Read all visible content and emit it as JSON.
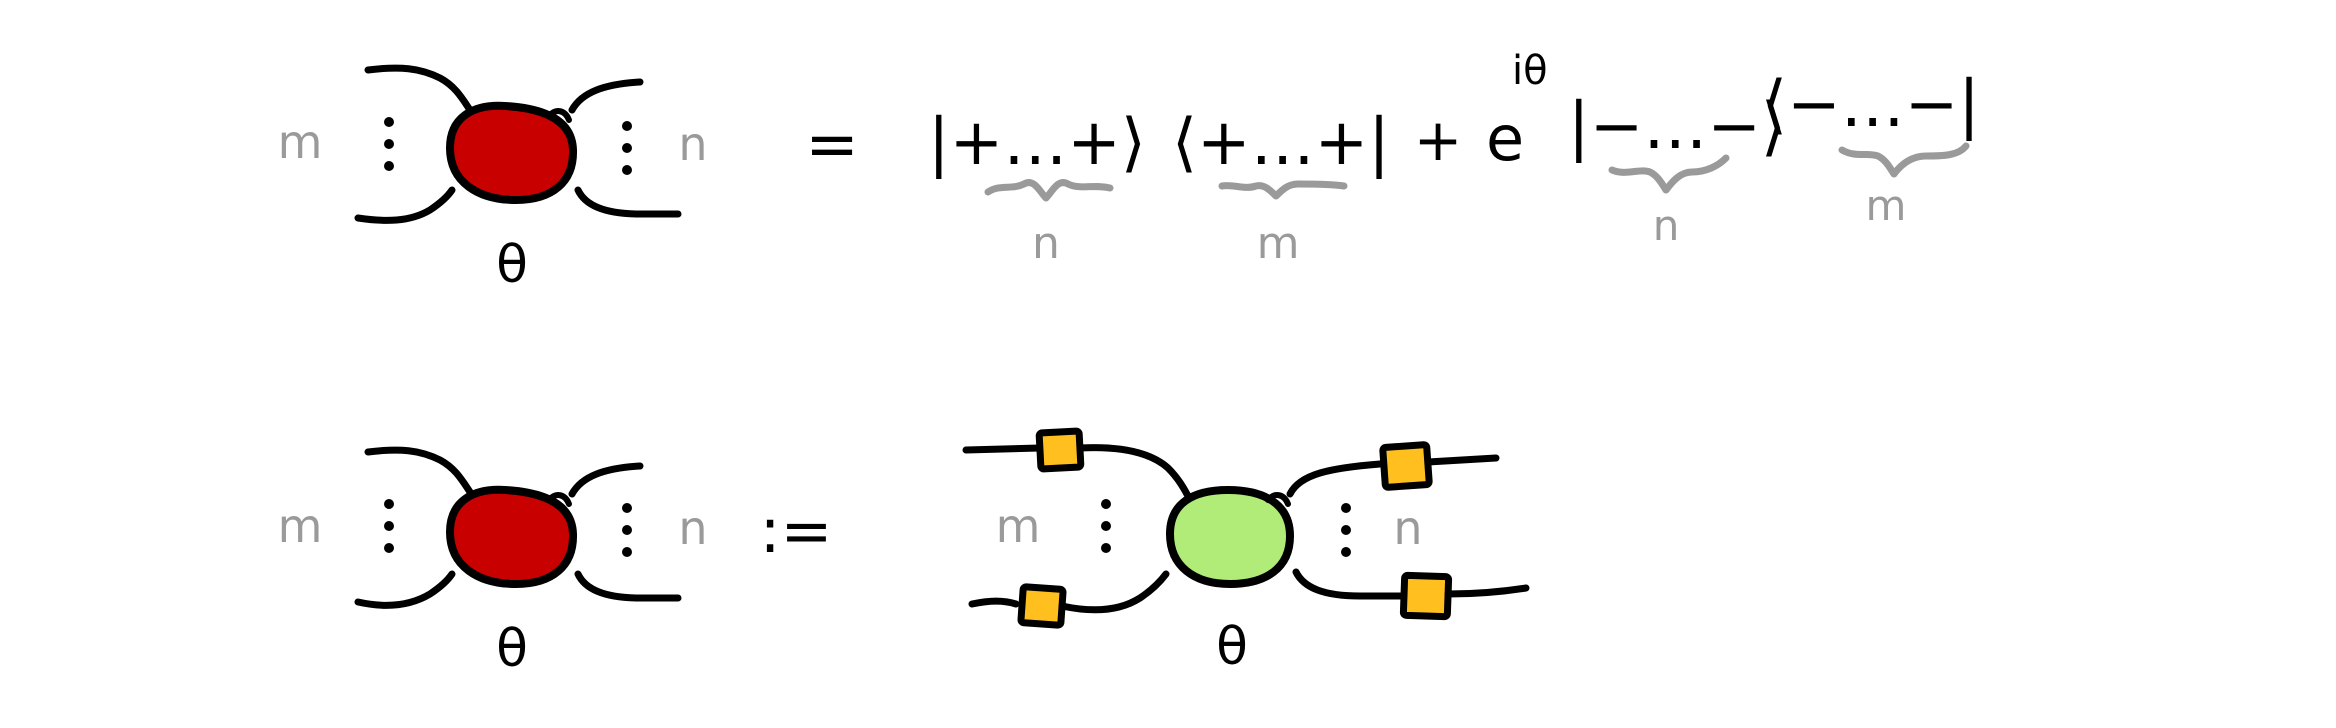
{
  "equations": [
    {
      "lhs": {
        "spider_color": "#c80000",
        "left_wires_label": "m",
        "right_wires_label": "n",
        "phase": "θ"
      },
      "relation": "=",
      "rhs": {
        "term1_ket": "|+…+⟩",
        "term1_ket_count": "n",
        "term1_bra": "⟨+…+|",
        "term1_bra_count": "m",
        "plus": "+",
        "coefficient_base": "e",
        "coefficient_exponent": "iθ",
        "term2_ket": "|−…−⟩",
        "term2_ket_count": "n",
        "term2_bra": "⟨−…−|",
        "term2_bra_count": "m"
      }
    },
    {
      "lhs": {
        "spider_color": "#c80000",
        "left_wires_label": "m",
        "right_wires_label": "n",
        "phase": "θ"
      },
      "relation": ":=",
      "rhs": {
        "spider_color": "#b2ec78",
        "box_color": "#ffbf1f",
        "left_wires_label": "m",
        "right_wires_label": "n",
        "phase": "θ"
      }
    }
  ]
}
